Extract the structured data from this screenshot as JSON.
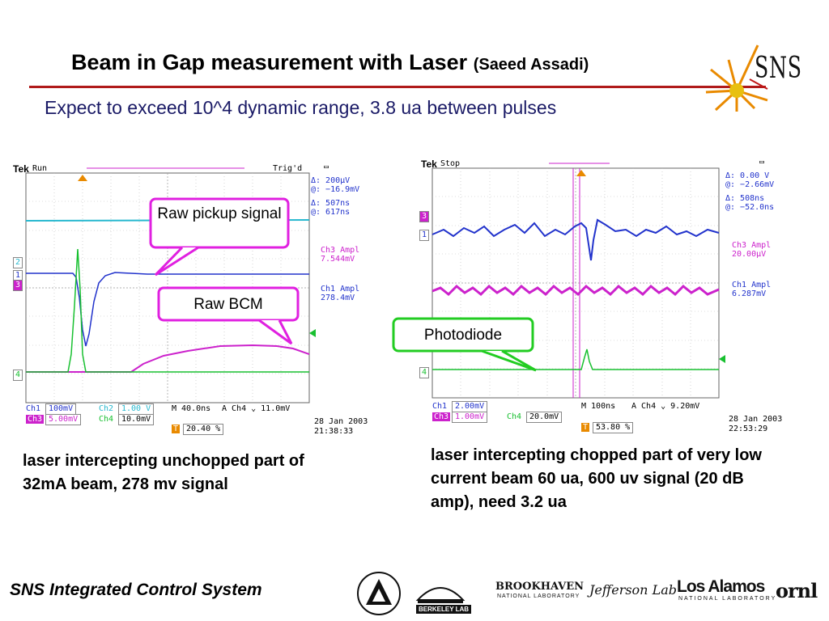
{
  "slide": {
    "title": "Beam in Gap measurement with Laser",
    "title_author": "(Saeed Assadi)",
    "subtitle": "Expect to exceed 10^4 dynamic range, 3.8 ua between pulses",
    "footer": "SNS Integrated Control System",
    "logo_text": "SNS"
  },
  "scope_left": {
    "brand": "Tek",
    "run_state": "Run",
    "trigger_state": "Trig'd",
    "cursor1_delta": "Δ:   200μV",
    "cursor1_at": "@:  −16.9mV",
    "cursor2_delta": "Δ:   507ns",
    "cursor2_at": "@:   617ns",
    "meas1_label": "Ch3 Ampl",
    "meas1_value": "7.544mV",
    "meas2_label": "Ch1 Ampl",
    "meas2_value": "278.4mV",
    "ch1_label": "Ch1",
    "ch1_scale": "100mV",
    "ch2_label": "Ch2",
    "ch2_scale": "1.00 V",
    "ch3_label": "Ch3",
    "ch3_scale": "5.00mV",
    "ch4_label": "Ch4",
    "ch4_scale": "10.0mV",
    "timebase": "M 40.0ns",
    "trigger": "A  Ch4  ⌄  11.0mV",
    "trigger_pos": "20.40 %",
    "date": "28 Jan  2003",
    "time": "21:38:33",
    "markers": [
      "2",
      "1",
      "3",
      "4"
    ]
  },
  "scope_right": {
    "brand": "Tek",
    "run_state": "Stop",
    "cursor1_delta": "Δ:   0.00 V",
    "cursor1_at": "@:  −2.66mV",
    "cursor2_delta": "Δ:   508ns",
    "cursor2_at": "@:  −52.0ns",
    "meas1_label": "Ch3 Ampl",
    "meas1_value": "20.00μV",
    "meas2_label": "Ch1 Ampl",
    "meas2_value": "6.287mV",
    "ch1_label": "Ch1",
    "ch1_scale": "2.00mV",
    "ch3_label": "Ch3",
    "ch3_scale": "1.00mV",
    "ch4_label": "Ch4",
    "ch4_scale": "20.0mV",
    "timebase": "M 100ns",
    "trigger": "A  Ch4  ⌄  9.20mV",
    "trigger_pos": "53.80 %",
    "date": "28 Jan  2003",
    "time": "22:53:29",
    "markers": [
      "3",
      "1",
      "4"
    ]
  },
  "callouts": {
    "raw_pickup": "Raw pickup signal",
    "raw_bcm": "Raw BCM",
    "photodiode": "Photodiode"
  },
  "captions": {
    "left": "laser intercepting unchopped part of 32mA beam, 278 mv signal",
    "right": "laser intercepting chopped part of very low current beam 60 ua, 600 uv signal (20 dB amp), need 3.2 ua"
  },
  "logos": {
    "berkeley": "BERKELEY LAB",
    "brookhaven": "BROOKHAVEN",
    "brookhaven_sub": "NATIONAL LABORATORY",
    "jefferson": "Jefferson Lab",
    "los_alamos": "Los Alamos",
    "los_alamos_sub": "NATIONAL LABORATORY",
    "ornl": "ornl"
  },
  "colors": {
    "ch1": "#2233cc",
    "ch2": "#27b8cf",
    "ch3": "#cc22cc",
    "ch4": "#18c030",
    "callout_magenta": "#e020e0",
    "callout_green": "#22cc22",
    "rule": "#b01a1a"
  }
}
